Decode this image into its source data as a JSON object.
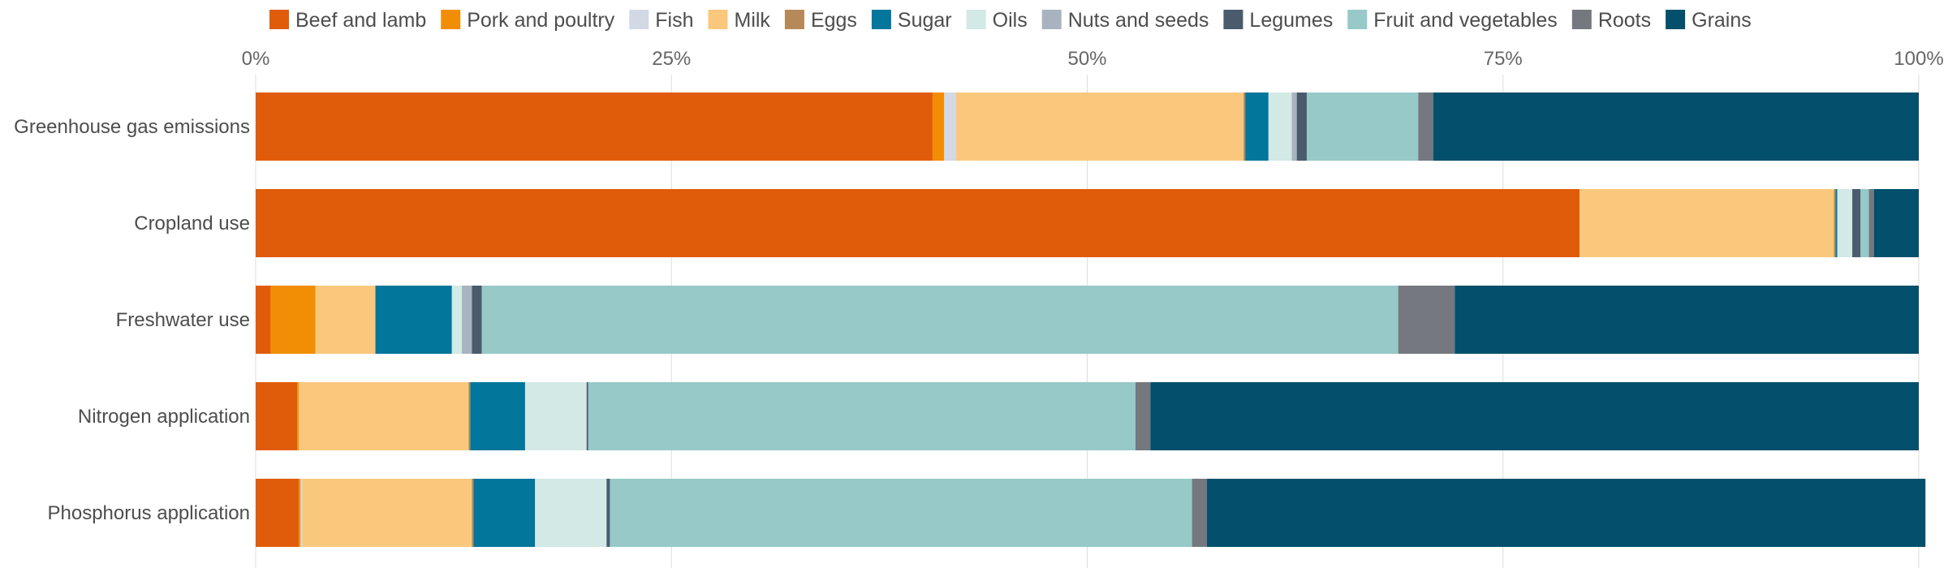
{
  "chart_data": {
    "type": "bar",
    "orientation": "horizontal",
    "stacked": true,
    "normalized_percent": true,
    "grid": true,
    "legend_position": "top",
    "title": "",
    "xlabel": "",
    "ylabel": "",
    "xlim": [
      0,
      100
    ],
    "x_ticks": [
      "0%",
      "25%",
      "50%",
      "75%",
      "100%"
    ],
    "categories": [
      "Greenhouse gas emissions",
      "Cropland use",
      "Freshwater use",
      "Nitrogen application",
      "Phosphorus application"
    ],
    "series": [
      {
        "name": "Beef and lamb",
        "color": "#e05c0b",
        "values": [
          40.7,
          79.6,
          0.9,
          2.5,
          2.6
        ]
      },
      {
        "name": "Pork and poultry",
        "color": "#f28e05",
        "values": [
          0.7,
          0.0,
          2.7,
          0.1,
          0.1
        ]
      },
      {
        "name": "Fish",
        "color": "#d2d9e5",
        "values": [
          0.7,
          0.0,
          0.0,
          0.0,
          0.1
        ]
      },
      {
        "name": "Milk",
        "color": "#fac87d",
        "values": [
          17.3,
          15.3,
          3.6,
          10.2,
          10.2
        ]
      },
      {
        "name": "Eggs",
        "color": "#b68a58",
        "values": [
          0.1,
          0.1,
          0.0,
          0.1,
          0.1
        ]
      },
      {
        "name": "Sugar",
        "color": "#03769c",
        "values": [
          1.4,
          0.1,
          4.6,
          3.3,
          3.7
        ]
      },
      {
        "name": "Oils",
        "color": "#d2e9e6",
        "values": [
          1.4,
          0.9,
          0.6,
          3.7,
          4.3
        ]
      },
      {
        "name": "Nuts and seeds",
        "color": "#a9b3bf",
        "values": [
          0.3,
          0.0,
          0.6,
          0.0,
          0.0
        ]
      },
      {
        "name": "Legumes",
        "color": "#4b5b6e",
        "values": [
          0.6,
          0.5,
          0.6,
          0.1,
          0.2
        ]
      },
      {
        "name": "Fruit and vegetables",
        "color": "#96c9c8",
        "values": [
          6.7,
          0.5,
          55.1,
          32.9,
          35.0
        ]
      },
      {
        "name": "Roots",
        "color": "#75787f",
        "values": [
          0.9,
          0.3,
          3.4,
          0.9,
          0.9
        ]
      },
      {
        "name": "Grains",
        "color": "#02506b",
        "values": [
          29.2,
          2.7,
          27.9,
          46.2,
          43.2
        ]
      }
    ]
  }
}
